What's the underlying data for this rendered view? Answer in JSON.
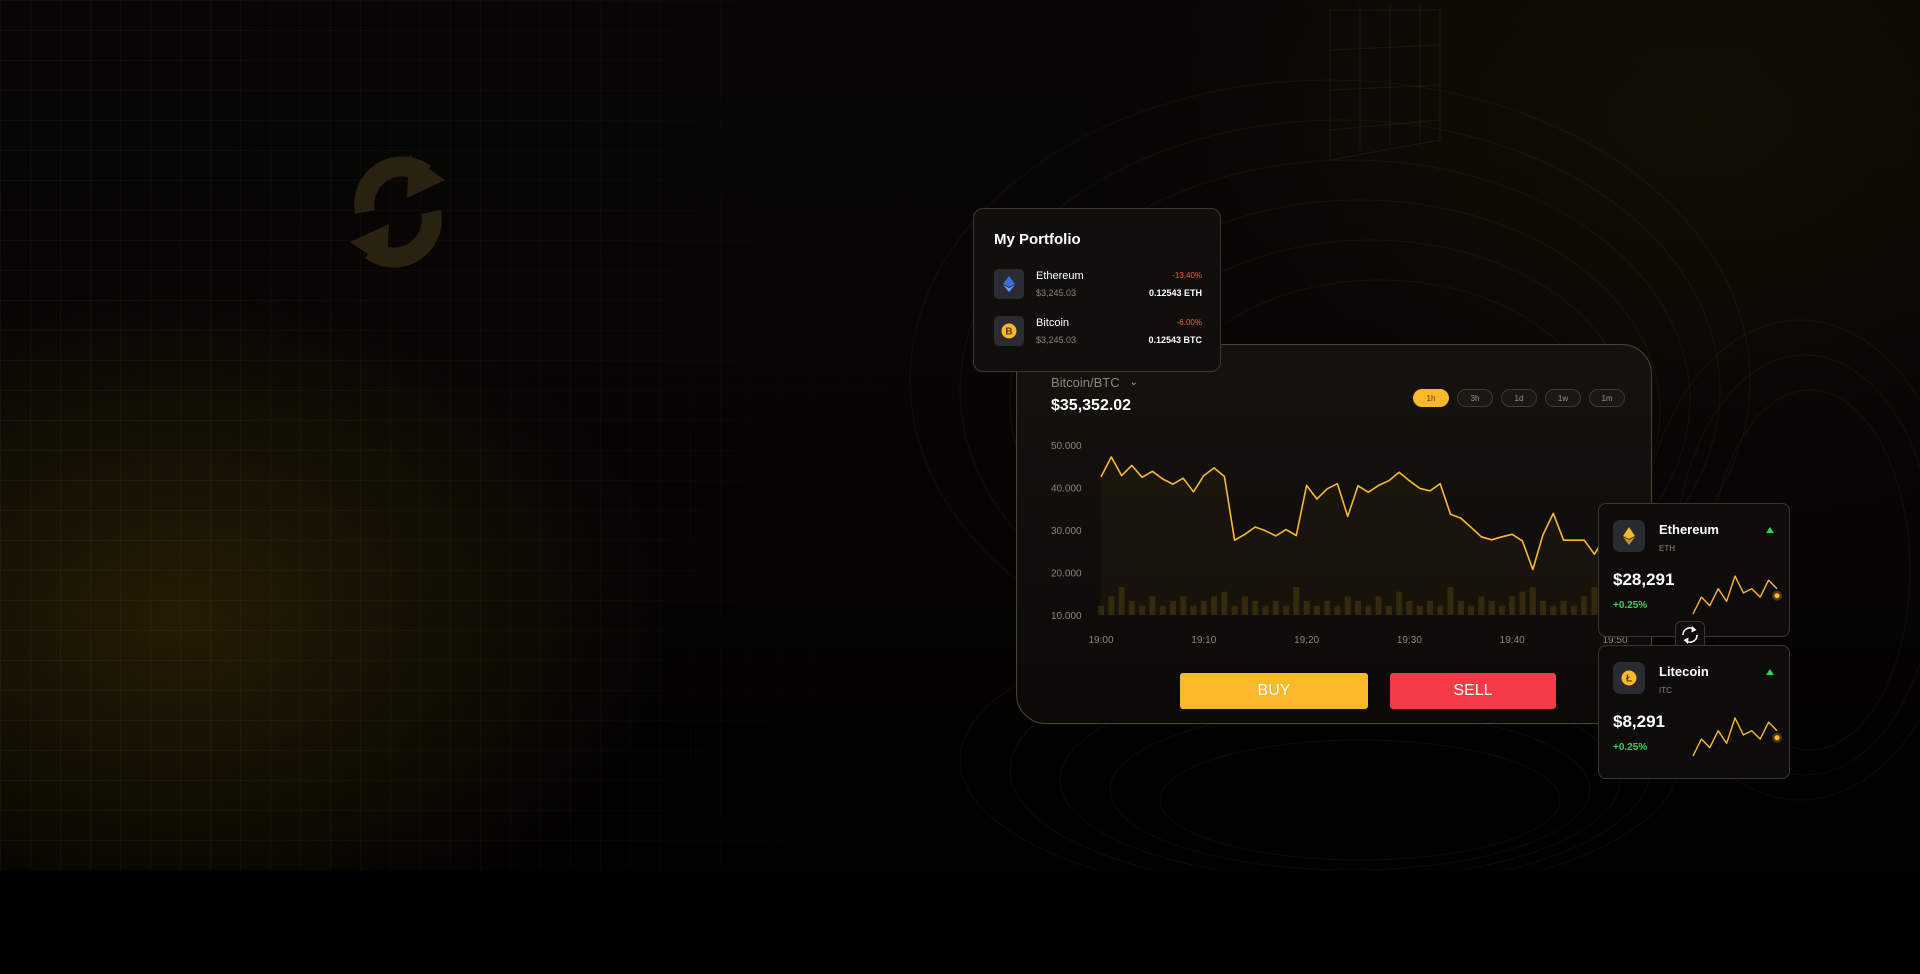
{
  "portfolio": {
    "title": "My Portfolio",
    "items": [
      {
        "name": "Ethereum",
        "usd": "$3,245.03",
        "change": "-13.40%",
        "amount": "0.12543 ETH"
      },
      {
        "name": "Bitcoin",
        "usd": "$3,245.03",
        "change": "-6.00%",
        "amount": "0.12543 BTC"
      }
    ]
  },
  "trade": {
    "pair": "Bitcoin/BTC",
    "price": "$35,352.02",
    "timeframes": [
      "1h",
      "3h",
      "1d",
      "1w",
      "1m"
    ],
    "active_timeframe": "1h",
    "buy_label": "BUY",
    "sell_label": "SELL"
  },
  "coins": [
    {
      "name": "Ethereum",
      "symbol": "ETH",
      "price": "$28,291",
      "change": "+0.25%",
      "icon": "ethereum-icon"
    },
    {
      "name": "Litecoin",
      "symbol": "ITC",
      "price": "$8,291",
      "change": "+0.25%",
      "icon": "litecoin-icon"
    }
  ],
  "colors": {
    "accent": "#fbb828",
    "sell": "#f23b47",
    "positive": "#2ed35a",
    "negative": "#f0613a"
  },
  "chart_data": {
    "type": "line",
    "title": "",
    "xlabel": "",
    "ylabel": "",
    "x_ticks": [
      "19:00",
      "19:10",
      "19:20",
      "19:30",
      "19:40",
      "19:50"
    ],
    "y_ticks": [
      "50.000",
      "40.000",
      "30.000",
      "20.000",
      "10.000"
    ],
    "ylim": [
      10000,
      50000
    ],
    "xlim": [
      0,
      50
    ],
    "series": [
      {
        "name": "Bitcoin/BTC price",
        "x": [
          0,
          1,
          2,
          3,
          4,
          5,
          6,
          7,
          8,
          9,
          10,
          11,
          12,
          13,
          14,
          15,
          16,
          17,
          18,
          19,
          20,
          21,
          22,
          23,
          24,
          25,
          26,
          27,
          28,
          29,
          30,
          31,
          32,
          33,
          34,
          35,
          36,
          37,
          38,
          39,
          40,
          41,
          42,
          43,
          44,
          45,
          46,
          47,
          48,
          49,
          50
        ],
        "values": [
          42500,
          47200,
          42800,
          45200,
          42400,
          43800,
          42000,
          40800,
          42200,
          39000,
          42800,
          44600,
          42600,
          27600,
          29000,
          30700,
          29800,
          28600,
          30100,
          28700,
          40500,
          37300,
          39700,
          40900,
          33200,
          40400,
          38900,
          40500,
          41600,
          43600,
          41600,
          39800,
          39200,
          40900,
          33700,
          32800,
          30600,
          28400,
          27700,
          28400,
          29000,
          27400,
          20700,
          28900,
          33900,
          27600,
          27600,
          27600,
          24300,
          28100,
          32200
        ]
      },
      {
        "name": "Volume",
        "values": [
          2,
          4,
          6,
          3,
          2,
          4,
          2,
          3,
          4,
          2,
          3,
          4,
          5,
          2,
          4,
          3,
          2,
          3,
          2,
          6,
          3,
          2,
          3,
          2,
          4,
          3,
          2,
          4,
          2,
          5,
          3,
          2,
          3,
          2,
          6,
          3,
          2,
          4,
          3,
          2,
          4,
          5,
          6,
          3,
          2,
          3,
          2,
          4,
          6,
          3,
          2
        ]
      }
    ]
  },
  "sparkline": {
    "type": "line",
    "values": [
      1,
      5,
      3,
      7,
      4,
      10,
      6,
      7,
      5,
      9,
      7
    ]
  }
}
